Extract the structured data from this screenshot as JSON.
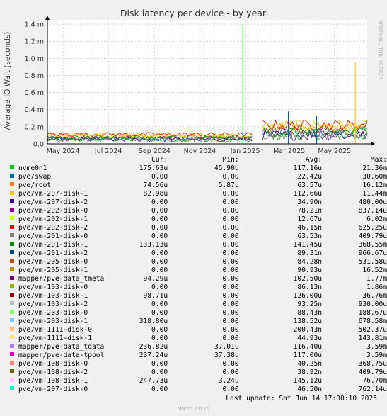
{
  "chart_data": {
    "type": "line",
    "title": "Disk latency per device - by year",
    "ylabel": "Average IO Wait (seconds)",
    "side_label": "RRDTOOL / TOBI OETIKER",
    "ylim": [
      0,
      0.00145
    ],
    "y_ticks": [
      {
        "v": 0,
        "label": "0.0"
      },
      {
        "v": 0.0002,
        "label": "0.2 m"
      },
      {
        "v": 0.0004,
        "label": "0.4 m"
      },
      {
        "v": 0.0006,
        "label": "0.6 m"
      },
      {
        "v": 0.0008,
        "label": "0.8 m"
      },
      {
        "v": 0.001,
        "label": "1.0 m"
      },
      {
        "v": 0.0012,
        "label": "1.2 m"
      },
      {
        "v": 0.0014,
        "label": "1.4 m"
      }
    ],
    "x_range": [
      "2024-04-10",
      "2025-06-14"
    ],
    "x_ticks": [
      {
        "date": "2024-05-01",
        "label": "May 2024"
      },
      {
        "date": "2024-07-01",
        "label": "Jul 2024"
      },
      {
        "date": "2024-09-01",
        "label": "Sep 2024"
      },
      {
        "date": "2024-11-01",
        "label": "Nov 2024"
      },
      {
        "date": "2025-01-01",
        "label": "Jan 2025"
      },
      {
        "date": "2025-03-01",
        "label": "Mar 2025"
      },
      {
        "date": "2025-05-01",
        "label": "May 2025"
      }
    ],
    "grid": true,
    "spikes": [
      {
        "date": "2024-12-29",
        "value": 0.0014,
        "color": "#00cc00"
      },
      {
        "date": "2025-05-29",
        "value": 0.00095,
        "color": "#ffcc00"
      },
      {
        "date": "2025-02-28",
        "value": 0.00038,
        "color": "#0066b3"
      },
      {
        "date": "2025-04-07",
        "value": 0.00033,
        "color": "#0066b3"
      }
    ],
    "series_colors": [
      "#00cc00",
      "#0066b3",
      "#ff8000",
      "#ffcc00",
      "#330099",
      "#990099",
      "#ccff00",
      "#ff0000",
      "#808080",
      "#008f00",
      "#00487d",
      "#b35a00",
      "#b38f00",
      "#6b006b",
      "#8fb300",
      "#b30000",
      "#bebebe",
      "#80ff80",
      "#80c9ff",
      "#ffc080",
      "#ffe680",
      "#aa80ff",
      "#ee00cc",
      "#ff8080",
      "#666600",
      "#ffbfff",
      "#00ffcc"
    ]
  },
  "legend": {
    "headers": {
      "cur": "Cur:",
      "min": "Min:",
      "avg": "Avg:",
      "max": "Max:"
    },
    "rows": [
      {
        "name": "nvme0n1",
        "color": "#00cc00",
        "cur": "175.63u",
        "min": "45.90u",
        "avg": "117.16u",
        "max": "21.36m"
      },
      {
        "name": "pve/swap",
        "color": "#0066b3",
        "cur": "0.00",
        "min": "0.00",
        "avg": "22.42u",
        "max": "30.60m"
      },
      {
        "name": "pve/root",
        "color": "#ff8000",
        "cur": "74.56u",
        "min": "5.87u",
        "avg": "63.57u",
        "max": "16.12m"
      },
      {
        "name": "pve/vm-207-disk-1",
        "color": "#ffcc00",
        "cur": "82.98u",
        "min": "0.00",
        "avg": "112.66u",
        "max": "11.44m"
      },
      {
        "name": "pve/vm-207-disk-2",
        "color": "#330099",
        "cur": "0.00",
        "min": "0.00",
        "avg": "34.90n",
        "max": "480.00u"
      },
      {
        "name": "pve/vm-202-disk-0",
        "color": "#990099",
        "cur": "0.00",
        "min": "0.00",
        "avg": "78.21n",
        "max": "837.14u"
      },
      {
        "name": "pve/vm-202-disk-1",
        "color": "#ccff00",
        "cur": "0.00",
        "min": "0.00",
        "avg": "12.67u",
        "max": "6.02m"
      },
      {
        "name": "pve/vm-202-disk-2",
        "color": "#ff0000",
        "cur": "0.00",
        "min": "0.00",
        "avg": "46.15n",
        "max": "625.25u"
      },
      {
        "name": "pve/vm-201-disk-0",
        "color": "#808080",
        "cur": "0.00",
        "min": "0.00",
        "avg": "63.53n",
        "max": "409.79u"
      },
      {
        "name": "pve/vm-201-disk-1",
        "color": "#008f00",
        "cur": "133.13u",
        "min": "0.00",
        "avg": "141.45u",
        "max": "368.55m"
      },
      {
        "name": "pve/vm-201-disk-2",
        "color": "#00487d",
        "cur": "0.00",
        "min": "0.00",
        "avg": "89.31n",
        "max": "966.67u"
      },
      {
        "name": "pve/vm-205-disk-0",
        "color": "#b35a00",
        "cur": "0.00",
        "min": "0.00",
        "avg": "84.28n",
        "max": "531.58u"
      },
      {
        "name": "pve/vm-205-disk-1",
        "color": "#b38f00",
        "cur": "0.00",
        "min": "0.00",
        "avg": "90.93u",
        "max": "16.52m"
      },
      {
        "name": "mapper/pve-data_tmeta",
        "color": "#6b006b",
        "cur": "94.29u",
        "min": "0.00",
        "avg": "102.50u",
        "max": "1.77m"
      },
      {
        "name": "pve/vm-103-disk-0",
        "color": "#8fb300",
        "cur": "0.00",
        "min": "0.00",
        "avg": "86.13n",
        "max": "1.86m"
      },
      {
        "name": "pve/vm-103-disk-1",
        "color": "#b30000",
        "cur": "98.71u",
        "min": "0.00",
        "avg": "126.00u",
        "max": "36.76m"
      },
      {
        "name": "pve/vm-103-disk-2",
        "color": "#bebebe",
        "cur": "0.00",
        "min": "0.00",
        "avg": "93.25n",
        "max": "930.00u"
      },
      {
        "name": "pve/vm-203-disk-0",
        "color": "#80ff80",
        "cur": "0.00",
        "min": "0.00",
        "avg": "88.43n",
        "max": "188.67u"
      },
      {
        "name": "pve/vm-203-disk-1",
        "color": "#80c9ff",
        "cur": "318.80u",
        "min": "0.00",
        "avg": "138.52u",
        "max": "678.58m"
      },
      {
        "name": "pve/vm-1111-disk-0",
        "color": "#ffc080",
        "cur": "0.00",
        "min": "0.00",
        "avg": "200.43n",
        "max": "502.37u"
      },
      {
        "name": "pve/vm-1111-disk-1",
        "color": "#ffe680",
        "cur": "0.00",
        "min": "0.00",
        "avg": "44.93u",
        "max": "143.81m"
      },
      {
        "name": "mapper/pve-data_tdata",
        "color": "#aa80ff",
        "cur": "236.82u",
        "min": "37.01u",
        "avg": "116.40u",
        "max": "3.59m"
      },
      {
        "name": "mapper/pve-data-tpool",
        "color": "#ee00cc",
        "cur": "237.24u",
        "min": "37.38u",
        "avg": "117.00u",
        "max": "3.59m"
      },
      {
        "name": "pve/vm-108-disk-0",
        "color": "#ff8080",
        "cur": "0.00",
        "min": "0.00",
        "avg": "40.25n",
        "max": "368.75u"
      },
      {
        "name": "pve/vm-108-disk-2",
        "color": "#666600",
        "cur": "0.00",
        "min": "0.00",
        "avg": "38.92n",
        "max": "409.79u"
      },
      {
        "name": "pve/vm-108-disk-1",
        "color": "#ffbfff",
        "cur": "247.73u",
        "min": "3.24u",
        "avg": "145.12u",
        "max": "76.70m"
      },
      {
        "name": "pve/vm-207-disk-0",
        "color": "#00ffcc",
        "cur": "0.00",
        "min": "0.00",
        "avg": "46.50n",
        "max": "762.14u"
      }
    ]
  },
  "footer": {
    "last_update": "Last update: Sat Jun 14 17:00:10 2025",
    "version": "Munin 2.0.75"
  }
}
